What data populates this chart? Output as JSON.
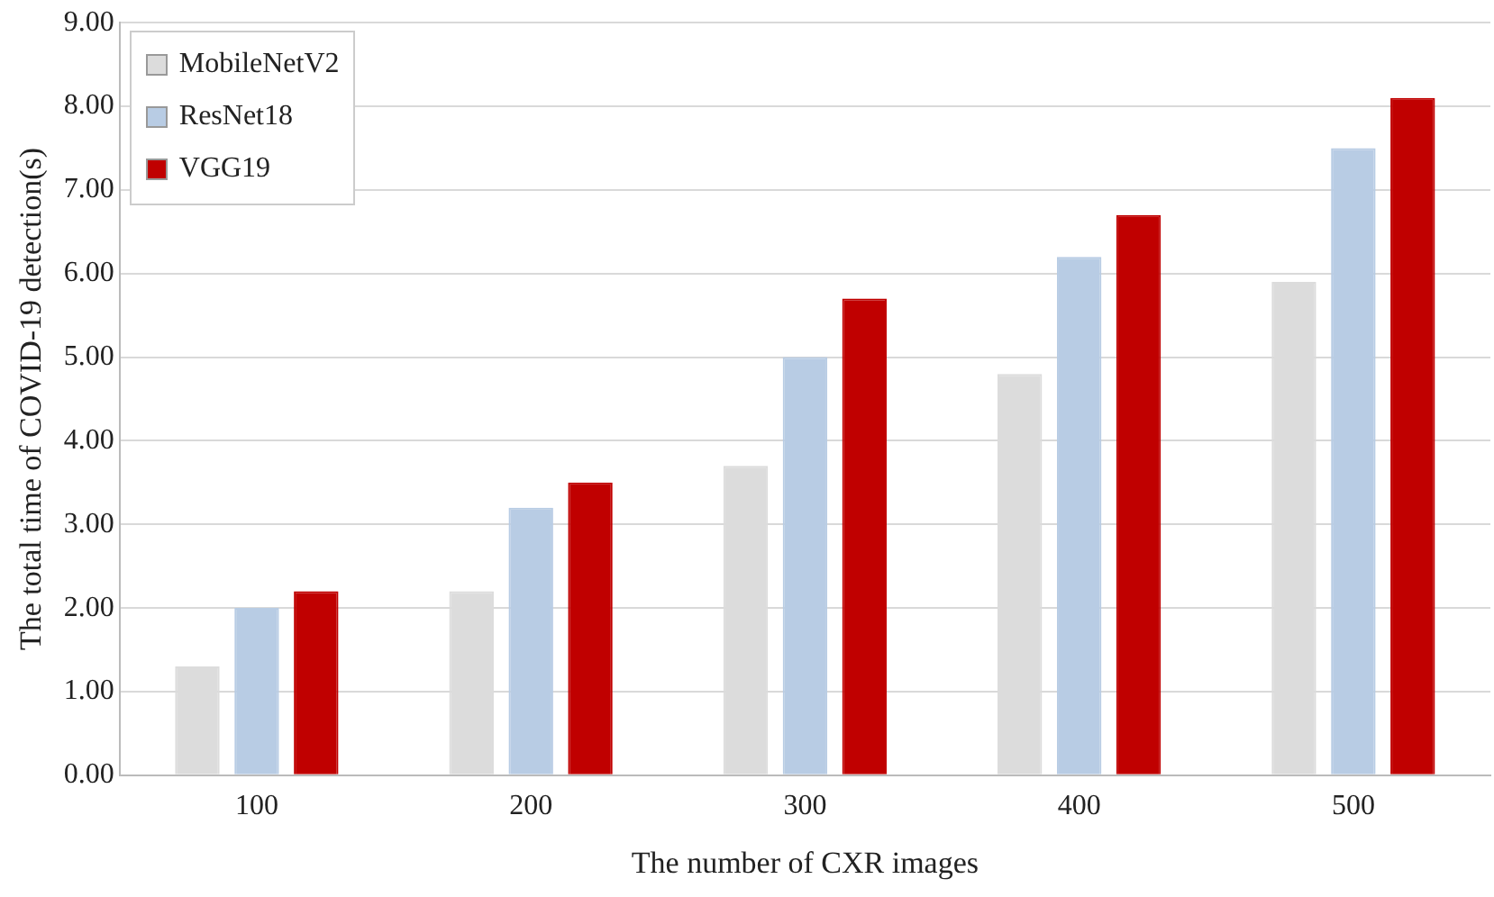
{
  "chart_data": {
    "type": "bar",
    "xlabel": "The number of CXR images",
    "ylabel": "The total time of COVID-19 detection(s)",
    "categories": [
      "100",
      "200",
      "300",
      "400",
      "500"
    ],
    "series": [
      {
        "name": "MobileNetV2",
        "color": "#dcdcdc",
        "values": [
          1.3,
          2.2,
          3.7,
          4.8,
          5.9
        ]
      },
      {
        "name": "ResNet18",
        "color": "#b8cce4",
        "values": [
          2.0,
          3.2,
          5.0,
          6.2,
          7.5
        ]
      },
      {
        "name": "VGG19",
        "color": "#c00000",
        "values": [
          2.2,
          3.5,
          5.7,
          6.7,
          8.1
        ]
      }
    ],
    "ylim": [
      0,
      9
    ],
    "yticks": [
      {
        "value": 0,
        "label": "0.00"
      },
      {
        "value": 1,
        "label": "1.00"
      },
      {
        "value": 2,
        "label": "2.00"
      },
      {
        "value": 3,
        "label": "3.00"
      },
      {
        "value": 4,
        "label": "4.00"
      },
      {
        "value": 5,
        "label": "5.00"
      },
      {
        "value": 6,
        "label": "6.00"
      },
      {
        "value": 7,
        "label": "7.00"
      },
      {
        "value": 8,
        "label": "8.00"
      },
      {
        "value": 9,
        "label": "9.00"
      }
    ],
    "grid": "y",
    "legend": "top left"
  }
}
